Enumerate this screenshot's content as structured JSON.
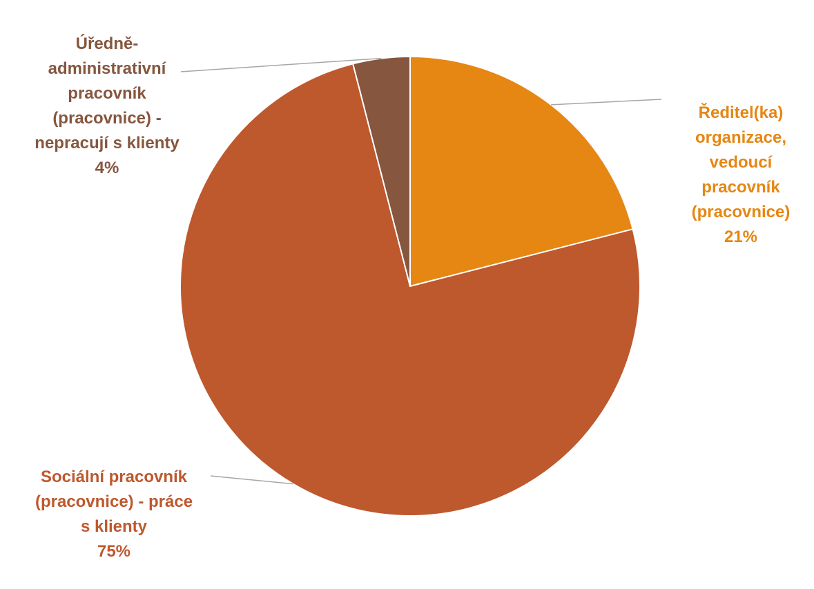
{
  "chart_data": {
    "type": "pie",
    "title": "",
    "slices": [
      {
        "label": "Ředitel(ka) organizace, vedoucí pracovník (pracovnice)",
        "label_lines": "Ředitel(ka)\norganizace,\nvedoucí\npracovník\n(pracovnice)",
        "value": 21,
        "value_label": "21%",
        "color": "#E68613"
      },
      {
        "label": "Sociální pracovník (pracovnice) - práce s klienty",
        "label_lines": "Sociální pracovník\n(pracovnice) - práce\ns klienty",
        "value": 75,
        "value_label": "75%",
        "color": "#BE582D"
      },
      {
        "label": "Úředně-administrativní pracovník (pracovnice) - nepracují s klienty",
        "label_lines": "Úředně-\nadministrativní\npracovník\n(pracovnice) -\nnepracují s klienty",
        "value": 4,
        "value_label": "4%",
        "color": "#86563E"
      }
    ],
    "label_color": {
      "0": "#E68613",
      "1": "#BE582D",
      "2": "#86563E"
    },
    "legend": "none"
  }
}
